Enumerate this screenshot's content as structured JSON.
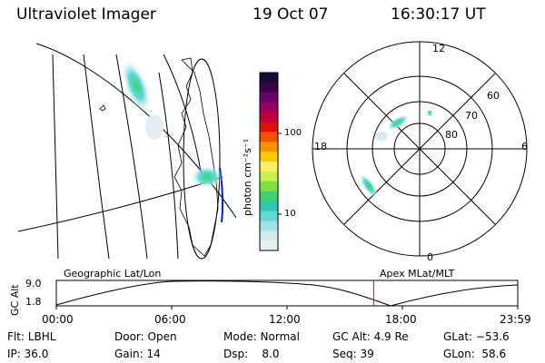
{
  "header": {
    "instrument": "Ultraviolet Imager",
    "date": "19 Oct 07",
    "time": "16:30:17 UT"
  },
  "colorbar": {
    "label": "photon cm⁻²s⁻¹",
    "ticks": [
      "100",
      "10"
    ],
    "colors": [
      "#1a0a3a",
      "#3a0048",
      "#6a006a",
      "#9a0060",
      "#c0003a",
      "#e01010",
      "#f05000",
      "#ff9000",
      "#ffc800",
      "#fff060",
      "#c8f050",
      "#80e040",
      "#40d070",
      "#30c8b0",
      "#60d8d8",
      "#a0e0e8",
      "#d0eaf0",
      "#e8eef2"
    ]
  },
  "polar_plot": {
    "mlt_labels": {
      "top": "12",
      "left": "18",
      "right": "6",
      "bottom": "0"
    },
    "lat_labels": [
      "60",
      "70",
      "80"
    ]
  },
  "timeline": {
    "left_title": "Geographic Lat/Lon",
    "right_title": "Apex MLat/MLT",
    "ylabel": "GC Alt",
    "y_ticks": [
      "9.0",
      "1.8"
    ],
    "x_ticks": [
      "00:00",
      "06:00",
      "12:00",
      "18:00",
      "23:59"
    ],
    "marker_time_hours": 16.505,
    "marker_color": "#e00000"
  },
  "status": {
    "filt": "Flt: LBHL",
    "ip": "IP: 36.0",
    "door": "Door: Open",
    "gain": "Gain: 14",
    "mode": "Mode: Normal",
    "dsp": "Dsp:    8.0",
    "gcalt": "GC Alt: 4.9 Re",
    "seq": "Seq: 39",
    "glat": "GLat: −53.6",
    "glon": "GLon:  58.6"
  }
}
